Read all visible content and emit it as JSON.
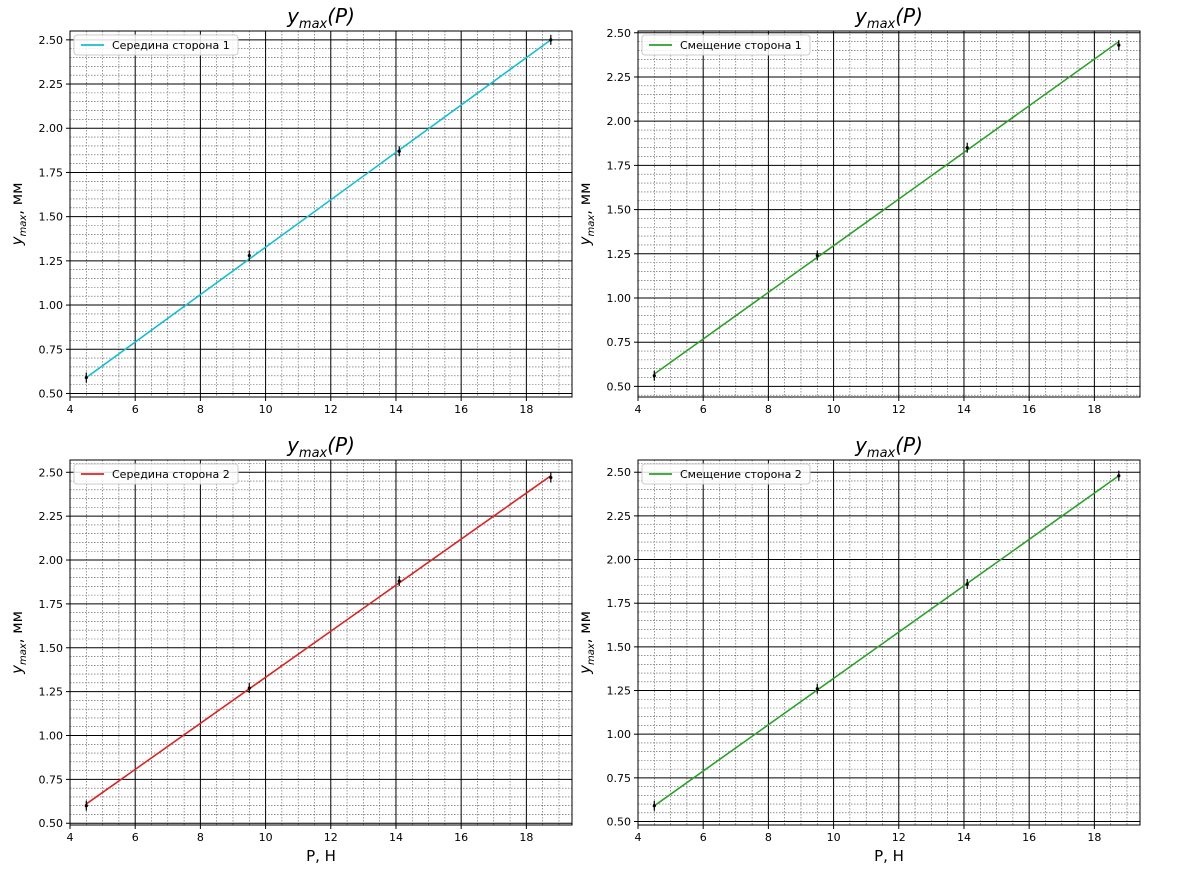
{
  "chart_data": [
    {
      "type": "line",
      "title": {
        "base": "y",
        "sub": "max",
        "arg": "(P)"
      },
      "ylabel": {
        "base": "y",
        "sub": "max",
        "unit": ", мм"
      },
      "xlabel": "",
      "xlim": [
        4,
        19.4
      ],
      "ylim": [
        0.48,
        2.55
      ],
      "xticks": [
        "4",
        "6",
        "8",
        "10",
        "12",
        "14",
        "16",
        "18"
      ],
      "yticks": [
        "0.50",
        "0.75",
        "1.00",
        "1.25",
        "1.50",
        "1.75",
        "2.00",
        "2.25",
        "2.50"
      ],
      "grid": "major+minor",
      "legend_position": "top-left",
      "series": [
        {
          "name": "Середина сторона 1",
          "color": "#17becf",
          "fit_x": [
            4.5,
            18.75
          ],
          "fit_y": [
            0.59,
            2.5
          ],
          "points": [
            {
              "x": 4.5,
              "y": 0.59
            },
            {
              "x": 9.5,
              "y": 1.28
            },
            {
              "x": 14.1,
              "y": 1.87
            },
            {
              "x": 18.75,
              "y": 2.5
            }
          ]
        }
      ]
    },
    {
      "type": "line",
      "title": {
        "base": "y",
        "sub": "max",
        "arg": "(P)"
      },
      "ylabel": {
        "base": "y",
        "sub": "max",
        "unit": ", мм"
      },
      "xlabel": "",
      "xlim": [
        4,
        19.4
      ],
      "ylim": [
        0.44,
        2.51
      ],
      "xticks": [
        "4",
        "6",
        "8",
        "10",
        "12",
        "14",
        "16",
        "18"
      ],
      "yticks": [
        "0.50",
        "0.75",
        "1.00",
        "1.25",
        "1.50",
        "1.75",
        "2.00",
        "2.25",
        "2.50"
      ],
      "grid": "major+minor",
      "legend_position": "top-left",
      "series": [
        {
          "name": "Смещение сторона 1",
          "color": "#2ca02c",
          "fit_x": [
            4.5,
            18.75
          ],
          "fit_y": [
            0.57,
            2.45
          ],
          "points": [
            {
              "x": 4.5,
              "y": 0.56
            },
            {
              "x": 9.5,
              "y": 1.24
            },
            {
              "x": 14.1,
              "y": 1.85
            },
            {
              "x": 18.75,
              "y": 2.43
            }
          ]
        }
      ]
    },
    {
      "type": "line",
      "title": {
        "base": "y",
        "sub": "max",
        "arg": "(P)"
      },
      "ylabel": {
        "base": "y",
        "sub": "max",
        "unit": ", мм"
      },
      "xlabel": "P, Н",
      "xlim": [
        4,
        19.4
      ],
      "ylim": [
        0.49,
        2.57
      ],
      "xticks": [
        "4",
        "6",
        "8",
        "10",
        "12",
        "14",
        "16",
        "18"
      ],
      "yticks": [
        "0.50",
        "0.75",
        "1.00",
        "1.25",
        "1.50",
        "1.75",
        "2.00",
        "2.25",
        "2.50"
      ],
      "grid": "major+minor",
      "legend_position": "top-left",
      "series": [
        {
          "name": "Середина сторона 2",
          "color": "#d62728",
          "fit_x": [
            4.5,
            18.75
          ],
          "fit_y": [
            0.61,
            2.48
          ],
          "points": [
            {
              "x": 4.5,
              "y": 0.6
            },
            {
              "x": 9.5,
              "y": 1.27
            },
            {
              "x": 14.1,
              "y": 1.88
            },
            {
              "x": 18.75,
              "y": 2.47
            }
          ]
        }
      ]
    },
    {
      "type": "line",
      "title": {
        "base": "y",
        "sub": "max",
        "arg": "(P)"
      },
      "ylabel": {
        "base": "y",
        "sub": "max",
        "unit": ", мм"
      },
      "xlabel": "P, Н",
      "xlim": [
        4,
        19.4
      ],
      "ylim": [
        0.48,
        2.57
      ],
      "xticks": [
        "4",
        "6",
        "8",
        "10",
        "12",
        "14",
        "16",
        "18"
      ],
      "yticks": [
        "0.50",
        "0.75",
        "1.00",
        "1.25",
        "1.50",
        "1.75",
        "2.00",
        "2.25",
        "2.50"
      ],
      "grid": "major+minor",
      "legend_position": "top-left",
      "series": [
        {
          "name": "Смещение сторона 2",
          "color": "#2ca02c",
          "fit_x": [
            4.5,
            18.75
          ],
          "fit_y": [
            0.59,
            2.48
          ],
          "points": [
            {
              "x": 4.5,
              "y": 0.59
            },
            {
              "x": 9.5,
              "y": 1.26
            },
            {
              "x": 14.1,
              "y": 1.86
            },
            {
              "x": 18.75,
              "y": 2.48
            }
          ]
        }
      ]
    }
  ],
  "colors": {
    "axis": "#000000",
    "grid_major": "#000000",
    "grid_minor": "#555555",
    "marker": "#000000"
  }
}
